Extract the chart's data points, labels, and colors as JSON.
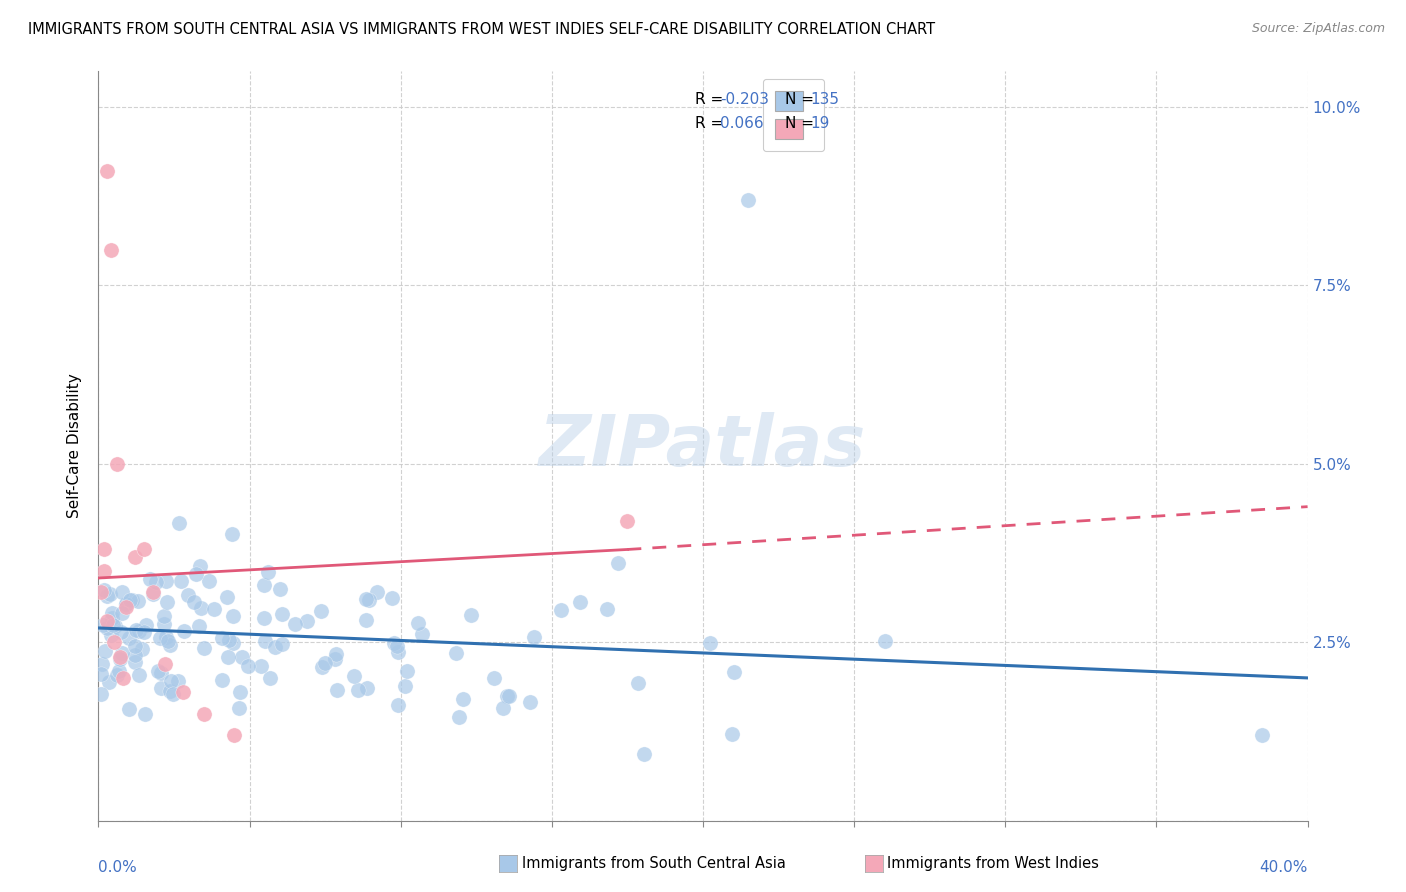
{
  "title": "IMMIGRANTS FROM SOUTH CENTRAL ASIA VS IMMIGRANTS FROM WEST INDIES SELF-CARE DISABILITY CORRELATION CHART",
  "source": "Source: ZipAtlas.com",
  "ylabel": "Self-Care Disability",
  "legend_blue_label": "Immigrants from South Central Asia",
  "legend_pink_label": "Immigrants from West Indies",
  "legend_blue_R": "-0.203",
  "legend_blue_N": "135",
  "legend_pink_R": "0.066",
  "legend_pink_N": "19",
  "watermark": "ZIPatlas",
  "xlim": [
    0.0,
    0.4
  ],
  "ylim": [
    0.0,
    0.105
  ],
  "background_color": "#ffffff",
  "blue_scatter_color": "#a8c8e8",
  "pink_scatter_color": "#f4a8b8",
  "blue_line_color": "#3070b0",
  "pink_line_color": "#e05878",
  "grid_color": "#cccccc",
  "right_tick_color": "#4472c4",
  "blue_seed": 42,
  "pink_seed": 7,
  "title_fontsize": 10.5,
  "source_fontsize": 9,
  "tick_fontsize": 11,
  "legend_fontsize": 11
}
